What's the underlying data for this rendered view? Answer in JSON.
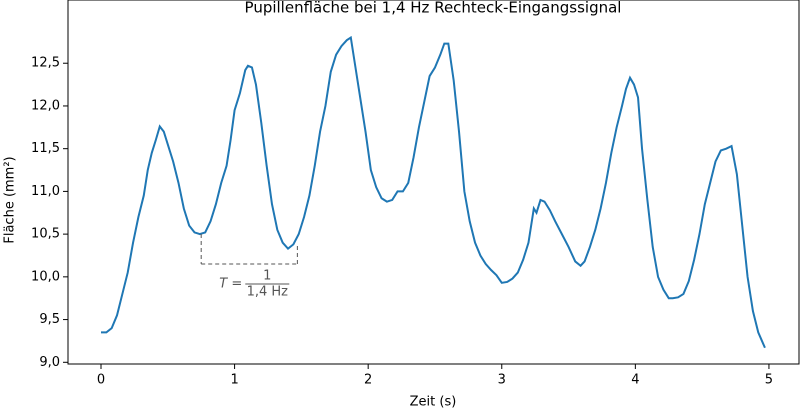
{
  "chart_data": {
    "type": "line",
    "title": "Pupillenfläche bei 1,4 Hz Rechteck-Eingangssignal",
    "x_label": "Zeit (s)",
    "y_label": "Fläche (mm²)",
    "xlim": [
      -0.247,
      5.225
    ],
    "ylim": [
      8.98,
      13.24
    ],
    "xticks": [
      0,
      1,
      2,
      3,
      4,
      5
    ],
    "yticks": [
      {
        "value": 9.0,
        "label": "9,0"
      },
      {
        "value": 9.5,
        "label": "9,5"
      },
      {
        "value": 10.0,
        "label": "10,0"
      },
      {
        "value": 10.5,
        "label": "10,5"
      },
      {
        "value": 11.0,
        "label": "11,0"
      },
      {
        "value": 11.5,
        "label": "11,5"
      },
      {
        "value": 12.0,
        "label": "12,0"
      },
      {
        "value": 12.5,
        "label": "12,5"
      }
    ],
    "series": [
      {
        "color": "#1f77b4",
        "x": [
          0,
          0.04,
          0.08,
          0.12,
          0.16,
          0.2,
          0.24,
          0.28,
          0.32,
          0.35,
          0.38,
          0.41,
          0.44,
          0.47,
          0.5,
          0.54,
          0.58,
          0.62,
          0.66,
          0.7,
          0.74,
          0.78,
          0.82,
          0.86,
          0.9,
          0.94,
          0.97,
          1.0,
          1.04,
          1.08,
          1.1,
          1.13,
          1.16,
          1.2,
          1.24,
          1.28,
          1.32,
          1.36,
          1.4,
          1.44,
          1.48,
          1.52,
          1.56,
          1.6,
          1.64,
          1.68,
          1.72,
          1.76,
          1.8,
          1.84,
          1.87,
          1.9,
          1.94,
          1.98,
          2.02,
          2.06,
          2.1,
          2.14,
          2.18,
          2.22,
          2.26,
          2.3,
          2.34,
          2.38,
          2.42,
          2.46,
          2.5,
          2.54,
          2.57,
          2.6,
          2.64,
          2.68,
          2.72,
          2.76,
          2.8,
          2.84,
          2.88,
          2.92,
          2.96,
          3.0,
          3.04,
          3.08,
          3.12,
          3.16,
          3.2,
          3.24,
          3.26,
          3.29,
          3.32,
          3.36,
          3.4,
          3.45,
          3.5,
          3.55,
          3.59,
          3.62,
          3.66,
          3.7,
          3.74,
          3.78,
          3.82,
          3.86,
          3.9,
          3.93,
          3.96,
          3.99,
          4.02,
          4.05,
          4.09,
          4.13,
          4.17,
          4.21,
          4.25,
          4.28,
          4.32,
          4.36,
          4.4,
          4.44,
          4.48,
          4.52,
          4.56,
          4.6,
          4.64,
          4.68,
          4.72,
          4.76,
          4.8,
          4.84,
          4.88,
          4.92,
          4.97
        ],
        "values": [
          9.35,
          9.35,
          9.4,
          9.55,
          9.8,
          10.05,
          10.4,
          10.7,
          10.95,
          11.25,
          11.45,
          11.6,
          11.76,
          11.7,
          11.55,
          11.35,
          11.1,
          10.8,
          10.6,
          10.52,
          10.5,
          10.52,
          10.65,
          10.85,
          11.1,
          11.3,
          11.6,
          11.95,
          12.15,
          12.42,
          12.47,
          12.45,
          12.25,
          11.8,
          11.3,
          10.85,
          10.55,
          10.4,
          10.33,
          10.38,
          10.5,
          10.7,
          10.95,
          11.3,
          11.7,
          12.0,
          12.4,
          12.6,
          12.7,
          12.77,
          12.8,
          12.5,
          12.1,
          11.7,
          11.25,
          11.05,
          10.92,
          10.88,
          10.9,
          11.0,
          11.0,
          11.1,
          11.4,
          11.75,
          12.05,
          12.35,
          12.45,
          12.6,
          12.73,
          12.73,
          12.3,
          11.7,
          11.0,
          10.65,
          10.4,
          10.25,
          10.15,
          10.08,
          10.02,
          9.93,
          9.94,
          9.98,
          10.05,
          10.2,
          10.4,
          10.8,
          10.75,
          10.9,
          10.88,
          10.78,
          10.65,
          10.5,
          10.35,
          10.18,
          10.13,
          10.18,
          10.35,
          10.55,
          10.8,
          11.1,
          11.45,
          11.75,
          12.0,
          12.2,
          12.33,
          12.25,
          12.1,
          11.5,
          10.9,
          10.35,
          10.0,
          9.85,
          9.75,
          9.75,
          9.76,
          9.8,
          9.95,
          10.2,
          10.5,
          10.85,
          11.1,
          11.35,
          11.48,
          11.5,
          11.53,
          11.2,
          10.6,
          10.0,
          9.6,
          9.35,
          9.17
        ]
      }
    ],
    "annotation": {
      "text": "T =",
      "numerator": "1",
      "denominator": "1,4 Hz",
      "x": [
        0.75,
        1.47
      ],
      "y": 10.15
    }
  }
}
